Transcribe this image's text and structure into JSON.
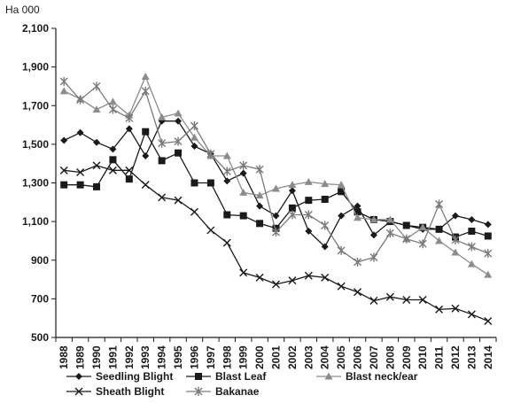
{
  "chart_data": {
    "type": "line",
    "unit_label": "Ha 000",
    "x": [
      "1988",
      "1989",
      "1990",
      "1991",
      "1992",
      "1993",
      "1994",
      "1995",
      "1996",
      "1997",
      "1998",
      "1999",
      "2000",
      "2001",
      "2002",
      "2003",
      "2004",
      "2005",
      "2006",
      "2007",
      "2008",
      "2009",
      "2010",
      "2011",
      "2012",
      "2013",
      "2014"
    ],
    "y_ticks": [
      "500",
      "700",
      "900",
      "1,100",
      "1,300",
      "1,500",
      "1,700",
      "1,900",
      "2,100"
    ],
    "ylim": [
      500,
      2100
    ],
    "grid": false,
    "legend_position": "bottom",
    "series": [
      {
        "name": "Seedling Blight",
        "marker": "diamond",
        "color": "#1a1a1a",
        "values": [
          1520,
          1560,
          1510,
          1475,
          1580,
          1440,
          1620,
          1620,
          1490,
          1450,
          1310,
          1350,
          1180,
          1130,
          1260,
          1050,
          970,
          1130,
          1180,
          1030,
          1100,
          1080,
          1060,
          1060,
          1130,
          1110,
          1085
        ]
      },
      {
        "name": "Blast Leaf",
        "marker": "square",
        "color": "#1a1a1a",
        "values": [
          1290,
          1290,
          1280,
          1420,
          1320,
          1565,
          1415,
          1455,
          1300,
          1300,
          1135,
          1130,
          1090,
          1065,
          1170,
          1210,
          1215,
          1255,
          1150,
          1110,
          1100,
          1080,
          1070,
          1060,
          1020,
          1050,
          1025
        ]
      },
      {
        "name": "Blast neck/ear",
        "marker": "triangle",
        "color": "#8c8c8c",
        "values": [
          1775,
          1735,
          1680,
          1720,
          1650,
          1850,
          1640,
          1660,
          1535,
          1440,
          1440,
          1250,
          1235,
          1270,
          1290,
          1305,
          1295,
          1290,
          1120,
          1110,
          1110,
          1010,
          1070,
          1000,
          940,
          880,
          825
        ]
      },
      {
        "name": "Sheath Blight",
        "marker": "x",
        "color": "#1a1a1a",
        "values": [
          1365,
          1355,
          1390,
          1365,
          1365,
          1290,
          1225,
          1210,
          1150,
          1055,
          990,
          835,
          810,
          775,
          795,
          820,
          810,
          765,
          735,
          690,
          710,
          695,
          695,
          645,
          650,
          620,
          585
        ]
      },
      {
        "name": "Bakanae",
        "marker": "star",
        "color": "#7a7a7a",
        "values": [
          1825,
          1730,
          1800,
          1680,
          1635,
          1775,
          1505,
          1515,
          1595,
          1450,
          1360,
          1390,
          1370,
          1045,
          1135,
          1135,
          1080,
          950,
          890,
          915,
          1040,
          1010,
          985,
          1190,
          1005,
          970,
          935
        ]
      }
    ]
  }
}
